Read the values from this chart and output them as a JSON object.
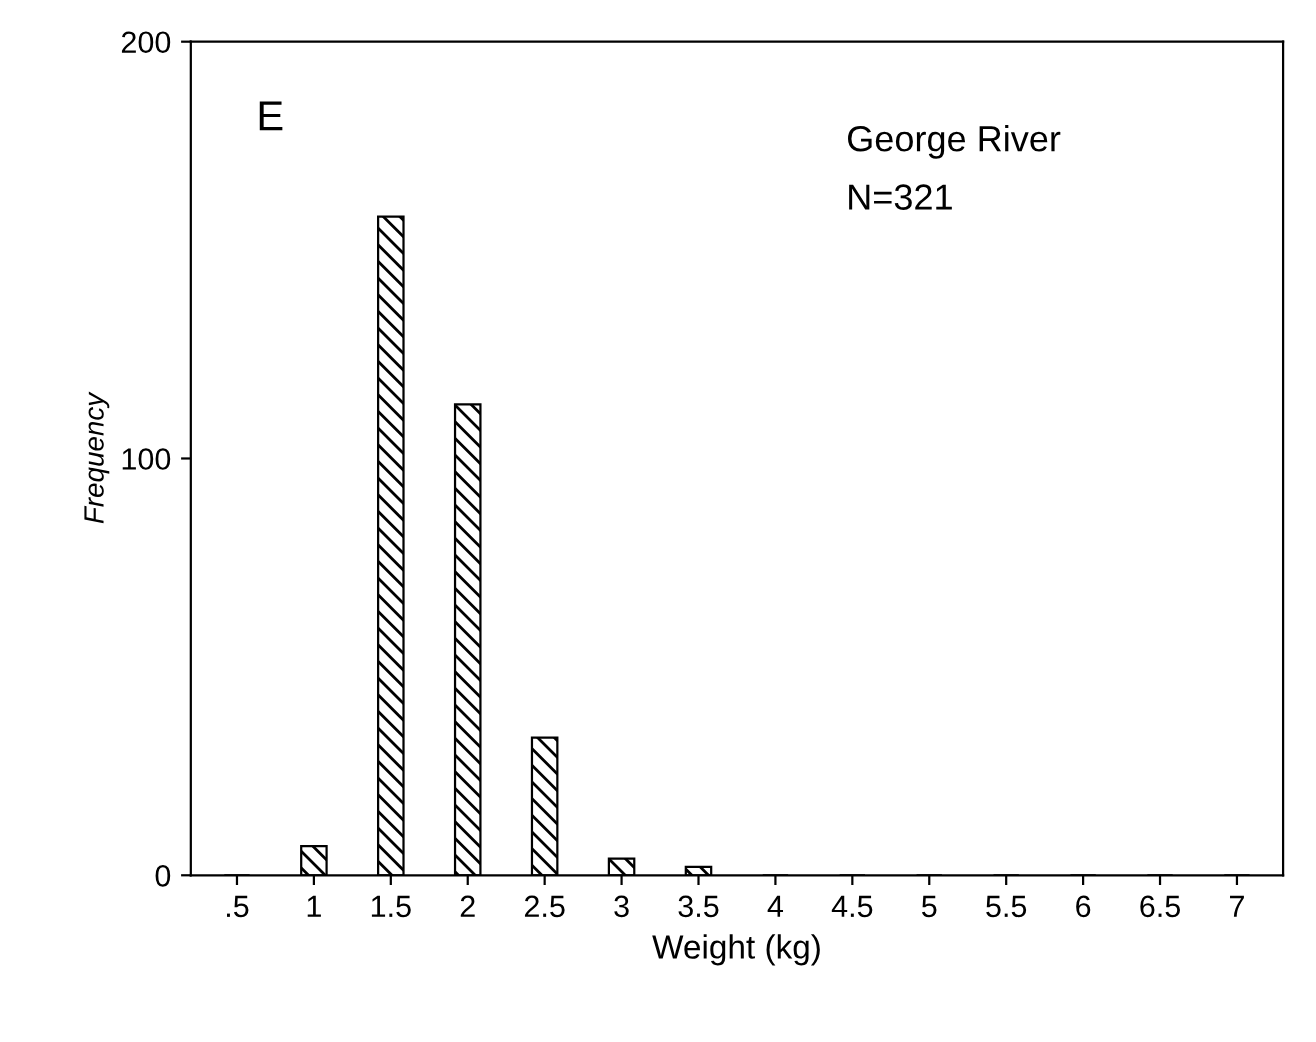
{
  "chart_data": {
    "type": "bar",
    "title": "E",
    "xlabel": "Weight (kg)",
    "ylabel": "Frequency",
    "annotations": [
      "George River",
      "N=321"
    ],
    "categories": [
      ".5",
      "1",
      "1.5",
      "2",
      "2.5",
      "3",
      "3.5",
      "4",
      "4.5",
      "5",
      "5.5",
      "6",
      "6.5",
      "7"
    ],
    "series": [
      {
        "color": "#000000",
        "values": [
          0,
          7,
          158,
          113,
          33,
          4,
          2,
          0,
          0,
          0,
          0,
          0,
          0,
          0
        ]
      }
    ],
    "ylim": [
      0,
      200
    ],
    "yticks": [
      0,
      100,
      200
    ],
    "grid": false
  }
}
